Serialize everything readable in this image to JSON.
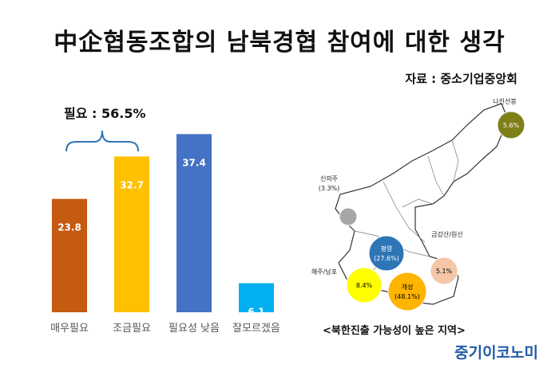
{
  "header": {
    "title": "中企협동조합의 남북경협 참여에 대한 생각",
    "source": "자료 : 중소기업중앙회"
  },
  "chart_data": [
    {
      "type": "bar",
      "categories": [
        "매우필요",
        "조금필요",
        "필요성 낮음",
        "잘모르겠음"
      ],
      "values": [
        23.8,
        32.7,
        37.4,
        6.1
      ],
      "colors": [
        "#c55a11",
        "#ffc000",
        "#4472c4",
        "#00b0f0"
      ],
      "ylim": [
        0,
        40
      ],
      "grid": false,
      "annotation": {
        "label": "필요 : 56.5%",
        "spans": [
          "매우필요",
          "조금필요"
        ]
      }
    },
    {
      "type": "map-bubbles",
      "caption": "<북한진출 가능성이 높은 지역>",
      "regions": [
        {
          "name": "나진선봉",
          "value": "5.6%",
          "color": "#7f7f1a",
          "label_inside": true
        },
        {
          "name": "신의주",
          "value": "(3.3%)",
          "color": "#a6a6a6",
          "label_inside": false
        },
        {
          "name": "평양",
          "value": "(27.6%)",
          "color": "#2e75b6",
          "label_inside": true
        },
        {
          "name": "금강산/원산",
          "value": "5.1%",
          "color": "#f4c7a8",
          "label_inside": true
        },
        {
          "name": "해주/남포",
          "value": "8.4%",
          "color": "#ffff00",
          "label_inside": true
        },
        {
          "name": "개성",
          "value": "(48.1%)",
          "color": "#ffb400",
          "label_inside": true
        }
      ]
    }
  ],
  "logo": "중기이코노미"
}
